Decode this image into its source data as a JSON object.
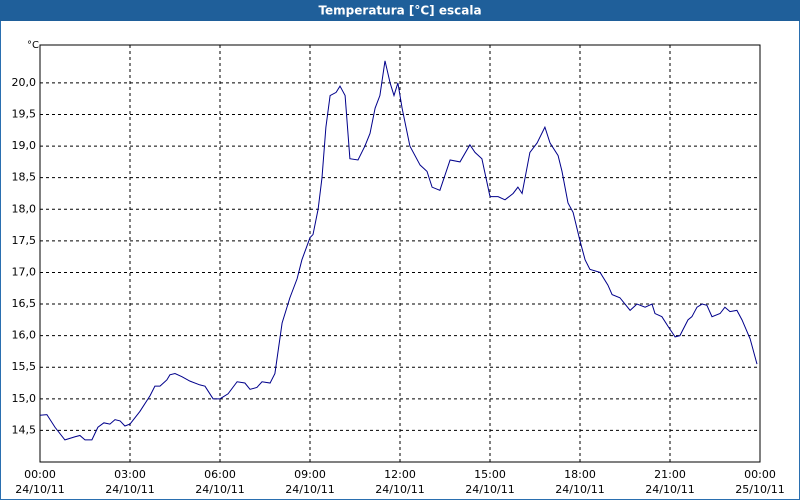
{
  "chart_data": {
    "type": "line",
    "title": "Temperatura [°C] escala",
    "y_label": "°C",
    "x": [
      0,
      0.23,
      0.5,
      0.83,
      1.17,
      1.33,
      1.5,
      1.73,
      1.93,
      2.13,
      2.33,
      2.5,
      2.67,
      2.83,
      3,
      3.33,
      3.67,
      3.83,
      4,
      4.23,
      4.33,
      4.5,
      4.73,
      5,
      5.33,
      5.5,
      5.77,
      6,
      6.27,
      6.57,
      6.83,
      7,
      7.23,
      7.4,
      7.67,
      7.83,
      8.07,
      8.33,
      8.57,
      8.73,
      9,
      9.1,
      9.27,
      9.4,
      9.53,
      9.67,
      9.87,
      10,
      10.17,
      10.33,
      10.6,
      10.83,
      11,
      11.17,
      11.33,
      11.5,
      11.67,
      11.8,
      11.93,
      12.07,
      12.33,
      12.67,
      12.9,
      13.07,
      13.33,
      13.67,
      14,
      14.33,
      14.5,
      14.73,
      15,
      15.27,
      15.5,
      15.77,
      15.93,
      16.07,
      16.33,
      16.57,
      16.83,
      17,
      17.27,
      17.4,
      17.6,
      17.77,
      18,
      18.17,
      18.33,
      18.67,
      18.93,
      19.07,
      19.33,
      19.5,
      19.67,
      19.9,
      20.17,
      20.4,
      20.5,
      20.73,
      20.93,
      21.17,
      21.33,
      21.6,
      21.73,
      21.9,
      22.07,
      22.23,
      22.4,
      22.67,
      22.83,
      23,
      23.23,
      23.4,
      23.67,
      23.9
    ],
    "series": [
      {
        "name": "Temperatura",
        "color": "#00008b",
        "values": [
          14.74,
          14.75,
          14.55,
          14.35,
          14.4,
          14.42,
          14.35,
          14.35,
          14.55,
          14.62,
          14.6,
          14.67,
          14.65,
          14.57,
          14.6,
          14.8,
          15.05,
          15.2,
          15.2,
          15.3,
          15.38,
          15.4,
          15.35,
          15.28,
          15.22,
          15.2,
          15.0,
          15.0,
          15.08,
          15.27,
          15.25,
          15.15,
          15.18,
          15.27,
          15.25,
          15.4,
          16.2,
          16.6,
          16.9,
          17.2,
          17.55,
          17.6,
          18.0,
          18.5,
          19.3,
          19.8,
          19.85,
          19.95,
          19.8,
          18.8,
          18.78,
          19.0,
          19.2,
          19.6,
          19.8,
          20.35,
          20.0,
          19.8,
          20.0,
          19.6,
          19.0,
          18.7,
          18.6,
          18.35,
          18.3,
          18.78,
          18.75,
          19.02,
          18.9,
          18.8,
          18.2,
          18.2,
          18.15,
          18.25,
          18.35,
          18.25,
          18.9,
          19.05,
          19.3,
          19.05,
          18.85,
          18.6,
          18.1,
          17.95,
          17.5,
          17.2,
          17.05,
          17.0,
          16.8,
          16.65,
          16.6,
          16.5,
          16.4,
          16.5,
          16.45,
          16.5,
          16.35,
          16.3,
          16.15,
          15.98,
          16.0,
          16.25,
          16.3,
          16.45,
          16.5,
          16.48,
          16.3,
          16.35,
          16.45,
          16.38,
          16.4,
          16.25,
          15.95,
          15.55
        ]
      }
    ],
    "xlim": [
      0,
      24
    ],
    "xticks": [
      {
        "value": 0,
        "label": "00:00"
      },
      {
        "value": 3,
        "label": "03:00"
      },
      {
        "value": 6,
        "label": "06:00"
      },
      {
        "value": 9,
        "label": "09:00"
      },
      {
        "value": 12,
        "label": "12:00"
      },
      {
        "value": 15,
        "label": "15:00"
      },
      {
        "value": 18,
        "label": "18:00"
      },
      {
        "value": 21,
        "label": "21:00"
      },
      {
        "value": 24,
        "label": "00:00"
      }
    ],
    "xtick_dates": [
      "24/10/11",
      "24/10/11",
      "24/10/11",
      "24/10/11",
      "24/10/11",
      "24/10/11",
      "24/10/11",
      "24/10/11",
      "25/10/11"
    ],
    "ylim": [
      14.0,
      20.6
    ],
    "yticks": [
      {
        "value": 14.5,
        "label": "14,5"
      },
      {
        "value": 15.0,
        "label": "15,0"
      },
      {
        "value": 15.5,
        "label": "15,5"
      },
      {
        "value": 16.0,
        "label": "16,0"
      },
      {
        "value": 16.5,
        "label": "16,5"
      },
      {
        "value": 17.0,
        "label": "17,0"
      },
      {
        "value": 17.5,
        "label": "17,5"
      },
      {
        "value": 18.0,
        "label": "18,0"
      },
      {
        "value": 18.5,
        "label": "18,5"
      },
      {
        "value": 19.0,
        "label": "19,0"
      },
      {
        "value": 19.5,
        "label": "19,5"
      },
      {
        "value": 20.0,
        "label": "20,0"
      }
    ],
    "grid": true
  }
}
